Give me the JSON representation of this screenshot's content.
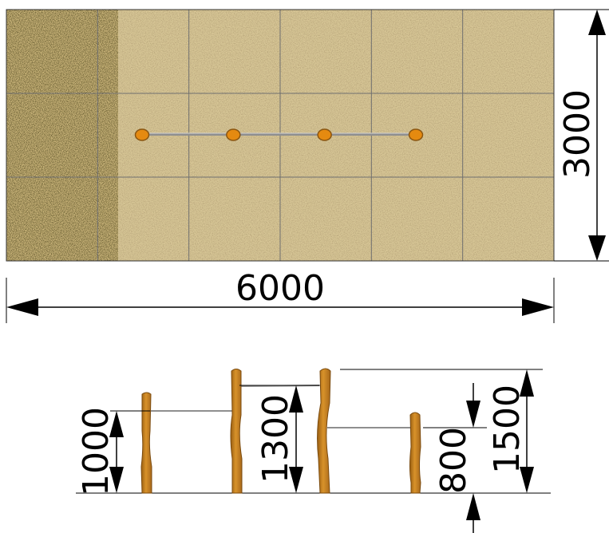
{
  "plan_view": {
    "width_label": "6000",
    "depth_label": "3000",
    "grid_columns": 6,
    "grid_rows": 3,
    "post_count": 4
  },
  "elevation_view": {
    "dims": {
      "post1": "1000",
      "post2": "1300",
      "gap": "800",
      "overall": "1500"
    }
  },
  "colors": {
    "sand": "#d4c18f",
    "sand_coarse": "#c8b277",
    "grid_line": "#6f6f6f",
    "post_wood": "#c7821d",
    "post_wood_dark": "#8a5510",
    "rope": "#9a9a9a",
    "dimension_line": "#000000"
  }
}
